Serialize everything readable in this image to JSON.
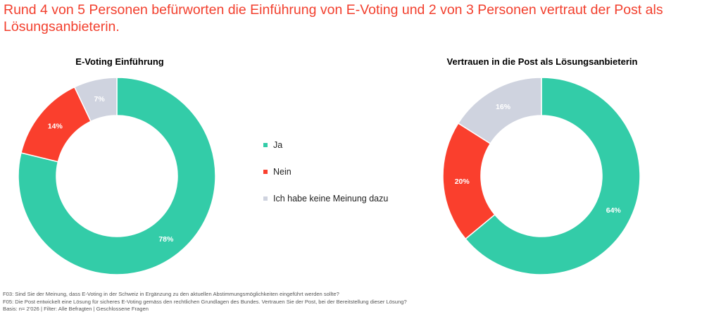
{
  "headline": "Rund 4 von 5 Personen befürworten die Einführung von E-Voting und 2 von 3 Personen vertraut der Post als Lösungsanbieterin.",
  "legend": [
    {
      "label": "Ja",
      "color": "#33cca8"
    },
    {
      "label": "Nein",
      "color": "#fa3f2d"
    },
    {
      "label": "Ich habe keine Meinung dazu",
      "color": "#cfd3df"
    }
  ],
  "chart_data": [
    {
      "type": "pie",
      "title": "E-Voting Einführung",
      "categories": [
        "Ja",
        "Nein",
        "Ich habe keine Meinung dazu"
      ],
      "values": [
        78,
        14,
        7
      ],
      "data_labels": [
        "78%",
        "14%",
        "7%"
      ],
      "colors": [
        "#33cca8",
        "#fa3f2d",
        "#cfd3df"
      ],
      "legend_position": "center"
    },
    {
      "type": "pie",
      "title": "Vertrauen in die Post als Lösungsanbieterin",
      "categories": [
        "Ja",
        "Nein",
        "Ich habe keine Meinung dazu"
      ],
      "values": [
        64,
        20,
        16
      ],
      "data_labels": [
        "64%",
        "20%",
        "16%"
      ],
      "colors": [
        "#33cca8",
        "#fa3f2d",
        "#cfd3df"
      ],
      "legend_position": "center"
    }
  ],
  "footer": {
    "line1": "F03: Sind Sie der Meinung, dass E-Voting in der Schweiz in Ergänzung zu den aktuellen Abstimmungsmöglichkeiten eingeführt werden sollte?",
    "line2": "F05: Die Post entwickelt eine Lösung für sicheres E-Voting gemäss den rechtlichen Grundlagen des Bundes. Vertrauen Sie der Post, bei der Bereitstellung dieser Lösung?",
    "line3": "Basis: n= 2'026 | Filter: Alle Befragten | Geschlossene Fragen"
  }
}
